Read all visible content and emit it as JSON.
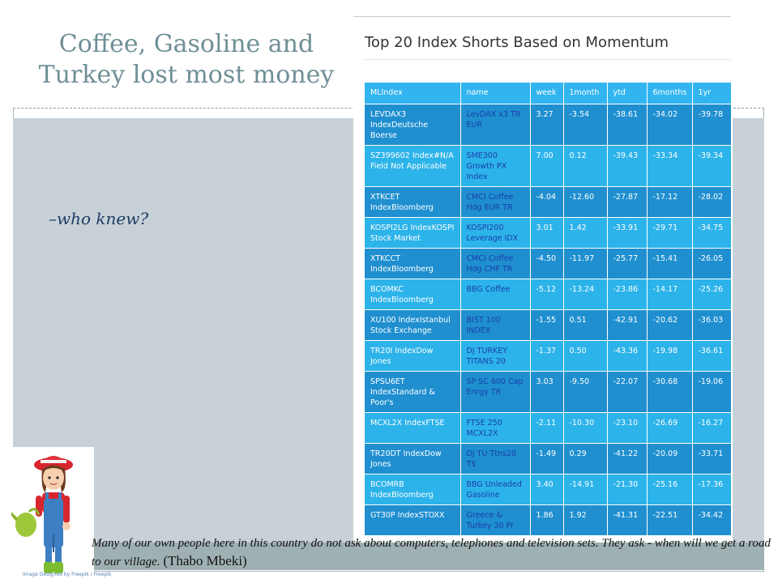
{
  "slide": {
    "title": "Coffee, Gasoline and Turkey lost most money",
    "bullet": "–who knew?",
    "quote": "Many of our own people here in this country do not ask about computers, telephones and television sets. They ask - when will we get a road to our village.",
    "quote_author": "(Thabo Mbeki)",
    "clipart_caption": "Image Designed by Freepik / Freepik"
  },
  "table_panel": {
    "title": "Top 20 Index Shorts Based on Momentum",
    "columns": [
      "MLIndex",
      "name",
      "week",
      "1month",
      "ytd",
      "6months",
      "1yr"
    ],
    "rows": [
      {
        "index": "LEVDAX3 IndexDeutsche Boerse",
        "name": "LevDAX x3 TR EUR",
        "week": "3.27",
        "month": "-3.54",
        "ytd": "-38.61",
        "m6": "-34.02",
        "yr": "-39.78"
      },
      {
        "index": "SZ399602 Index#N/A Field Not Applicable",
        "name": "SME300 Growth PX Index",
        "week": "7.00",
        "month": "0.12",
        "ytd": "-39.43",
        "m6": "-33.34",
        "yr": "-39.34"
      },
      {
        "index": "XTKCET IndexBloomberg",
        "name": "CMCI Coffee Hdg EUR TR",
        "week": "-4.04",
        "month": "-12.60",
        "ytd": "-27.87",
        "m6": "-17.12",
        "yr": "-28.02"
      },
      {
        "index": "KOSPI2LG IndexKOSPI Stock Market",
        "name": "KOSPI200 Leverage IDX",
        "week": "3.01",
        "month": "1.42",
        "ytd": "-33.91",
        "m6": "-29.71",
        "yr": "-34.75"
      },
      {
        "index": "XTKCCT IndexBloomberg",
        "name": "CMCI Coffee Hdg CHF TR",
        "week": "-4.50",
        "month": "-11.97",
        "ytd": "-25.77",
        "m6": "-15.41",
        "yr": "-26.05"
      },
      {
        "index": "BCOMKC IndexBloomberg",
        "name": "BBG Coffee",
        "week": "-5.12",
        "month": "-13.24",
        "ytd": "-23.86",
        "m6": "-14.17",
        "yr": "-25.26"
      },
      {
        "index": "XU100 IndexIstanbul Stock Exchange",
        "name": "BIST 100 INDEX",
        "week": "-1.55",
        "month": "0.51",
        "ytd": "-42.91",
        "m6": "-20.62",
        "yr": "-36.03"
      },
      {
        "index": "TR20I IndexDow Jones",
        "name": "DJ TURKEY TITANS 20",
        "week": "-1.37",
        "month": "0.50",
        "ytd": "-43.36",
        "m6": "-19.98",
        "yr": "-36.61"
      },
      {
        "index": "SPSU6ET IndexStandard & Poor's",
        "name": "SP SC 600 Cap Enrgy TR",
        "week": "3.03",
        "month": "-9.50",
        "ytd": "-22.07",
        "m6": "-30.68",
        "yr": "-19.06"
      },
      {
        "index": "MCXL2X IndexFTSE",
        "name": "FTSE 250 MCXL2X",
        "week": "-2.11",
        "month": "-10.30",
        "ytd": "-23.10",
        "m6": "-26.69",
        "yr": "-16.27"
      },
      {
        "index": "TR20DT IndexDow Jones",
        "name": "DJ TU Ttns20 T$",
        "week": "-1.49",
        "month": "0.29",
        "ytd": "-41.22",
        "m6": "-20.09",
        "yr": "-33.71"
      },
      {
        "index": "BCOMRB IndexBloomberg",
        "name": "BBG Unleaded Gasoline",
        "week": "3.40",
        "month": "-14.91",
        "ytd": "-21.30",
        "m6": "-25.16",
        "yr": "-17.36"
      },
      {
        "index": "GT30P IndexSTOXX",
        "name": "Greece & Turkey 30 Pr",
        "week": "1.86",
        "month": "1.92",
        "ytd": "-41.31",
        "m6": "-22.51",
        "yr": "-34.42"
      }
    ]
  },
  "colors": {
    "title": "#6f8f96",
    "header_blue": "#31b4ef",
    "row_dark": "#1f8fd0",
    "row_light": "#2cb3ea",
    "content_band": "#c7d1d7"
  }
}
